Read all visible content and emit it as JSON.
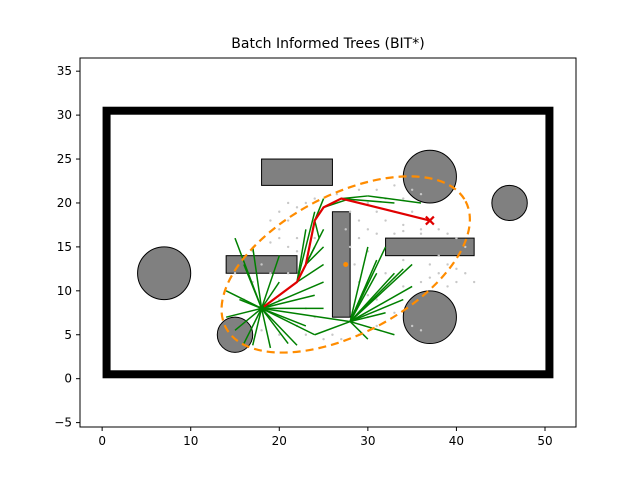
{
  "chart_data": {
    "type": "scatter",
    "title": "Batch Informed Trees (BIT*)",
    "xlabel": "",
    "ylabel": "",
    "xlim": [
      -2.5,
      53.5
    ],
    "ylim": [
      -5.5,
      36.5
    ],
    "xticks": [
      0,
      10,
      20,
      30,
      40,
      50
    ],
    "yticks": [
      -5,
      0,
      5,
      10,
      15,
      20,
      25,
      30,
      35
    ],
    "grid": false,
    "colors": {
      "boundary": "#000000",
      "obstacle_fill": "#808080",
      "tree": "#008000",
      "path": "#e00000",
      "ellipse": "#ff8c00",
      "samples": "#c8c8c8",
      "start": "#008000",
      "goal": "#e00000"
    },
    "boundary": {
      "x0": 0.5,
      "y0": 0.5,
      "x1": 50.5,
      "y1": 30.5
    },
    "rect_obstacles": [
      {
        "x": 18,
        "y": 22,
        "w": 8,
        "h": 3
      },
      {
        "x": 14,
        "y": 12,
        "w": 8,
        "h": 2
      },
      {
        "x": 26,
        "y": 7,
        "w": 2,
        "h": 12
      },
      {
        "x": 32,
        "y": 14,
        "w": 10,
        "h": 2
      }
    ],
    "circle_obstacles": [
      {
        "x": 7,
        "y": 12,
        "r": 3
      },
      {
        "x": 46,
        "y": 20,
        "r": 2
      },
      {
        "x": 15,
        "y": 5,
        "r": 2
      },
      {
        "x": 37,
        "y": 7,
        "r": 3
      },
      {
        "x": 37,
        "y": 23,
        "r": 3
      }
    ],
    "start": {
      "x": 18,
      "y": 8
    },
    "goal": {
      "x": 37,
      "y": 18
    },
    "ellipse": {
      "cx": 27.5,
      "cy": 13,
      "rx": 15.3,
      "ry": 7.9,
      "angle_deg": 27.8
    },
    "path": [
      [
        18,
        8
      ],
      [
        22,
        11
      ],
      [
        23,
        13
      ],
      [
        24,
        18
      ],
      [
        25,
        19.5
      ],
      [
        27,
        20.5
      ],
      [
        37,
        18
      ]
    ],
    "tree_edges": [
      [
        [
          18,
          8
        ],
        [
          15,
          16
        ]
      ],
      [
        [
          18,
          8
        ],
        [
          16,
          13
        ]
      ],
      [
        [
          18,
          8
        ],
        [
          14,
          10
        ]
      ],
      [
        [
          18,
          8
        ],
        [
          14,
          7
        ]
      ],
      [
        [
          18,
          8
        ],
        [
          16,
          4
        ]
      ],
      [
        [
          18,
          8
        ],
        [
          19,
          3.5
        ]
      ],
      [
        [
          18,
          8
        ],
        [
          21,
          4
        ]
      ],
      [
        [
          18,
          8
        ],
        [
          24,
          5
        ]
      ],
      [
        [
          18,
          8
        ],
        [
          25,
          8
        ]
      ],
      [
        [
          18,
          8
        ],
        [
          25,
          11
        ]
      ],
      [
        [
          18,
          8
        ],
        [
          20,
          14
        ]
      ],
      [
        [
          18,
          8
        ],
        [
          17,
          15
        ]
      ],
      [
        [
          18,
          8
        ],
        [
          22,
          3.8
        ]
      ],
      [
        [
          18,
          8
        ],
        [
          23,
          6
        ]
      ],
      [
        [
          18,
          8
        ],
        [
          20,
          11
        ]
      ],
      [
        [
          18,
          8
        ],
        [
          15.5,
          9
        ]
      ],
      [
        [
          18,
          8
        ],
        [
          17,
          3.8
        ]
      ],
      [
        [
          18,
          8
        ],
        [
          24,
          9.5
        ]
      ],
      [
        [
          18,
          8
        ],
        [
          15,
          5.5
        ]
      ],
      [
        [
          22,
          11
        ],
        [
          25,
          13
        ]
      ],
      [
        [
          22,
          11
        ],
        [
          24,
          15
        ]
      ],
      [
        [
          23,
          13
        ],
        [
          25,
          15
        ]
      ],
      [
        [
          23,
          13
        ],
        [
          25,
          17
        ]
      ],
      [
        [
          24,
          18
        ],
        [
          25,
          20.5
        ]
      ],
      [
        [
          24,
          18
        ],
        [
          24.5,
          16
        ]
      ],
      [
        [
          25,
          19.5
        ],
        [
          28,
          20.5
        ]
      ],
      [
        [
          27,
          20.5
        ],
        [
          30,
          20.8
        ]
      ],
      [
        [
          27,
          20.5
        ],
        [
          33,
          20
        ]
      ],
      [
        [
          30,
          20.8
        ],
        [
          36,
          20
        ]
      ],
      [
        [
          22,
          11
        ],
        [
          24,
          19
        ]
      ],
      [
        [
          22,
          11
        ],
        [
          23,
          17
        ]
      ],
      [
        [
          28,
          6.5
        ],
        [
          32,
          15
        ]
      ],
      [
        [
          28,
          6.5
        ],
        [
          30,
          15
        ]
      ],
      [
        [
          28,
          6.5
        ],
        [
          33,
          12
        ]
      ],
      [
        [
          28,
          6.5
        ],
        [
          34,
          9
        ]
      ],
      [
        [
          28,
          6.5
        ],
        [
          35,
          13
        ]
      ],
      [
        [
          28,
          6.5
        ],
        [
          31,
          12
        ]
      ],
      [
        [
          28,
          6.5
        ],
        [
          29.5,
          10
        ]
      ],
      [
        [
          28,
          6.5
        ],
        [
          30,
          4.5
        ]
      ],
      [
        [
          28,
          6.5
        ],
        [
          33,
          5
        ]
      ],
      [
        [
          28,
          6.5
        ],
        [
          35,
          10.5
        ]
      ],
      [
        [
          28,
          6.5
        ],
        [
          32,
          7.5
        ]
      ],
      [
        [
          28,
          6.5
        ],
        [
          34,
          12.5
        ]
      ],
      [
        [
          28,
          6.5
        ],
        [
          31,
          13.5
        ]
      ],
      [
        [
          28,
          6.5
        ],
        [
          30,
          11
        ]
      ],
      [
        [
          18,
          8
        ],
        [
          28,
          6.5
        ]
      ],
      [
        [
          24,
          5
        ],
        [
          28,
          6.5
        ]
      ]
    ],
    "samples": [
      [
        20,
        17
      ],
      [
        21,
        18
      ],
      [
        22,
        16
      ],
      [
        19,
        18
      ],
      [
        20,
        19
      ],
      [
        21,
        20
      ],
      [
        19,
        15.5
      ],
      [
        23,
        20
      ],
      [
        22,
        19.5
      ],
      [
        28,
        19
      ],
      [
        29,
        18
      ],
      [
        30,
        20
      ],
      [
        31,
        19
      ],
      [
        32,
        18
      ],
      [
        33,
        19
      ],
      [
        34,
        17.5
      ],
      [
        35,
        19
      ],
      [
        36,
        17
      ],
      [
        38,
        17
      ],
      [
        39,
        16.5
      ],
      [
        40,
        16
      ],
      [
        41,
        15
      ],
      [
        39,
        13
      ],
      [
        40,
        12.5
      ],
      [
        41,
        12
      ],
      [
        38,
        12
      ],
      [
        42,
        11
      ],
      [
        36,
        21
      ],
      [
        35,
        21.5
      ],
      [
        33,
        22
      ],
      [
        31,
        21.5
      ],
      [
        29,
        21.5
      ],
      [
        30,
        17
      ],
      [
        31,
        16.5
      ],
      [
        33,
        16.5
      ],
      [
        34,
        16.8
      ],
      [
        36,
        16.5
      ],
      [
        29,
        16
      ],
      [
        30,
        14.5
      ],
      [
        28.5,
        13
      ],
      [
        29,
        11
      ],
      [
        30,
        9.5
      ],
      [
        31,
        9
      ],
      [
        33,
        11.5
      ],
      [
        34,
        10.5
      ],
      [
        36,
        11
      ],
      [
        37,
        11.5
      ],
      [
        39,
        10.5
      ],
      [
        40,
        11
      ],
      [
        38,
        14
      ],
      [
        37,
        13
      ],
      [
        22,
        14.5
      ],
      [
        21,
        15
      ],
      [
        20,
        16
      ],
      [
        24,
        16
      ],
      [
        21,
        12
      ],
      [
        23,
        8
      ],
      [
        24,
        7
      ],
      [
        22,
        6
      ],
      [
        23,
        5
      ],
      [
        19,
        12
      ],
      [
        18,
        13
      ],
      [
        17,
        11
      ],
      [
        20,
        9
      ],
      [
        16,
        9
      ],
      [
        15,
        12
      ],
      [
        17,
        14.5
      ],
      [
        20,
        5
      ],
      [
        18,
        5.5
      ],
      [
        25,
        4.5
      ],
      [
        26,
        5
      ],
      [
        27,
        4.5
      ],
      [
        29,
        5
      ],
      [
        31,
        6
      ],
      [
        33,
        7.5
      ],
      [
        35,
        6
      ],
      [
        36,
        5.5
      ],
      [
        30,
        7
      ],
      [
        32,
        12
      ],
      [
        34,
        13.5
      ],
      [
        28,
        15
      ],
      [
        27.5,
        17
      ],
      [
        32,
        20.5
      ],
      [
        34,
        20.5
      ],
      [
        26.5,
        21
      ],
      [
        24,
        20.5
      ]
    ]
  }
}
